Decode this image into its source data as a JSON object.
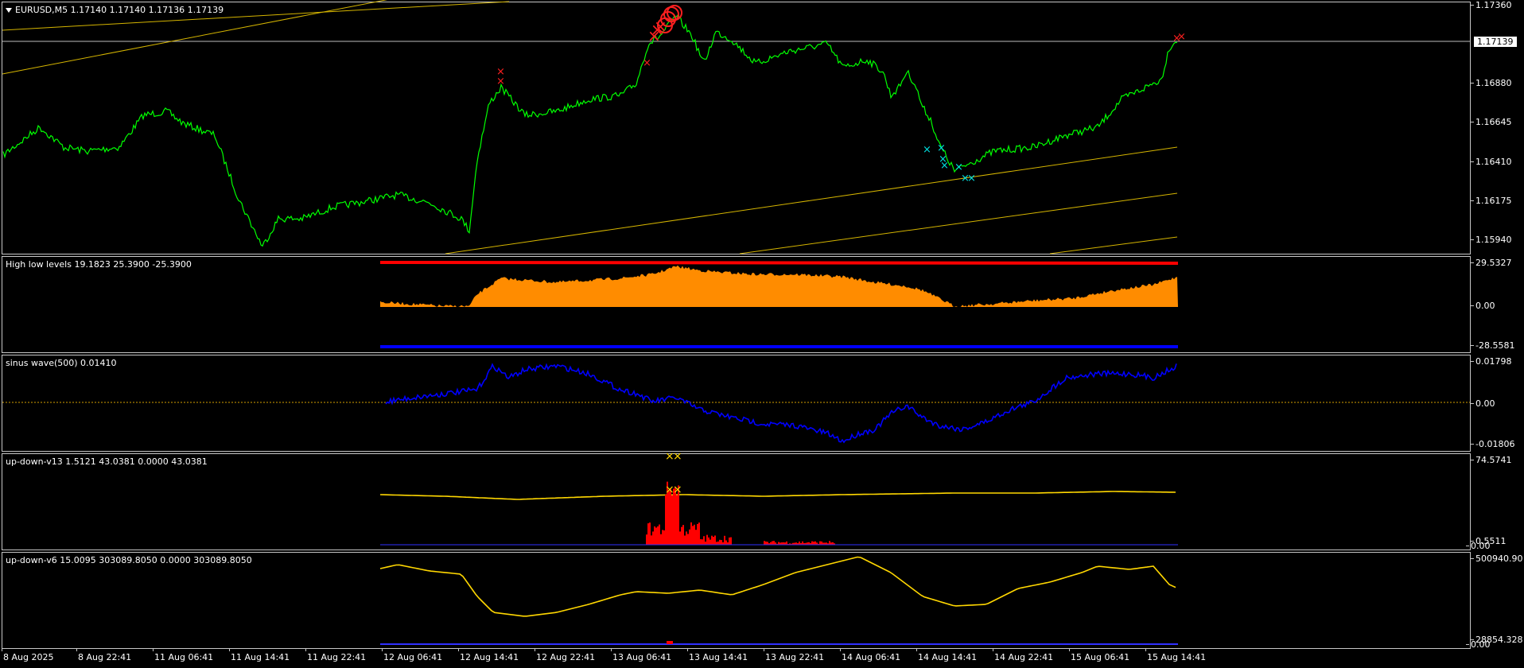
{
  "main": {
    "title": "EURUSD,M5  1.17140 1.17140 1.17136 1.17139",
    "price_ticks": [
      "1.17360",
      "1.17139",
      "1.16880",
      "1.16645",
      "1.16410",
      "1.16175",
      "1.15940"
    ],
    "current_price": "1.17139",
    "series_color": "#00ff00",
    "trend_color": "#d4b400"
  },
  "panes": [
    {
      "title": "High low levels 19.1823 25.3900 -25.3900",
      "ticks": [
        "29.5327",
        "0.00",
        "-28.5581"
      ]
    },
    {
      "title": "sinus wave(500) 0.01410",
      "ticks": [
        "0.01798",
        "0.00",
        "-0.01806"
      ]
    },
    {
      "title": "up-down-v13 1.5121 43.0381 0.0000 43.0381",
      "ticks": [
        "74.5741",
        "0.5511",
        "0.00"
      ]
    },
    {
      "title": "up-down-v6 15.0095 303089.8050 0.0000 303089.8050",
      "ticks": [
        "500940.90",
        "28854.328",
        "0.00"
      ]
    }
  ],
  "time_axis": [
    "8 Aug 2025",
    "8 Aug 22:41",
    "11 Aug 06:41",
    "11 Aug 14:41",
    "11 Aug 22:41",
    "12 Aug 06:41",
    "12 Aug 14:41",
    "12 Aug 22:41",
    "13 Aug 06:41",
    "13 Aug 14:41",
    "13 Aug 22:41",
    "14 Aug 06:41",
    "14 Aug 14:41",
    "14 Aug 22:41",
    "15 Aug 06:41",
    "15 Aug 14:41"
  ],
  "colors": {
    "price_line": "#00ff00",
    "hl_fill": "#ff8c00",
    "hl_upper": "#ff0000",
    "hl_lower": "#0000ff",
    "sinus": "#0000ff",
    "zero_line": "#d4a000",
    "v13_line": "#ffd700",
    "v13_hist": "#ff0000",
    "v6_line": "#ffd700",
    "marker_red": "#ff2020",
    "marker_cyan": "#00e0e0"
  }
}
